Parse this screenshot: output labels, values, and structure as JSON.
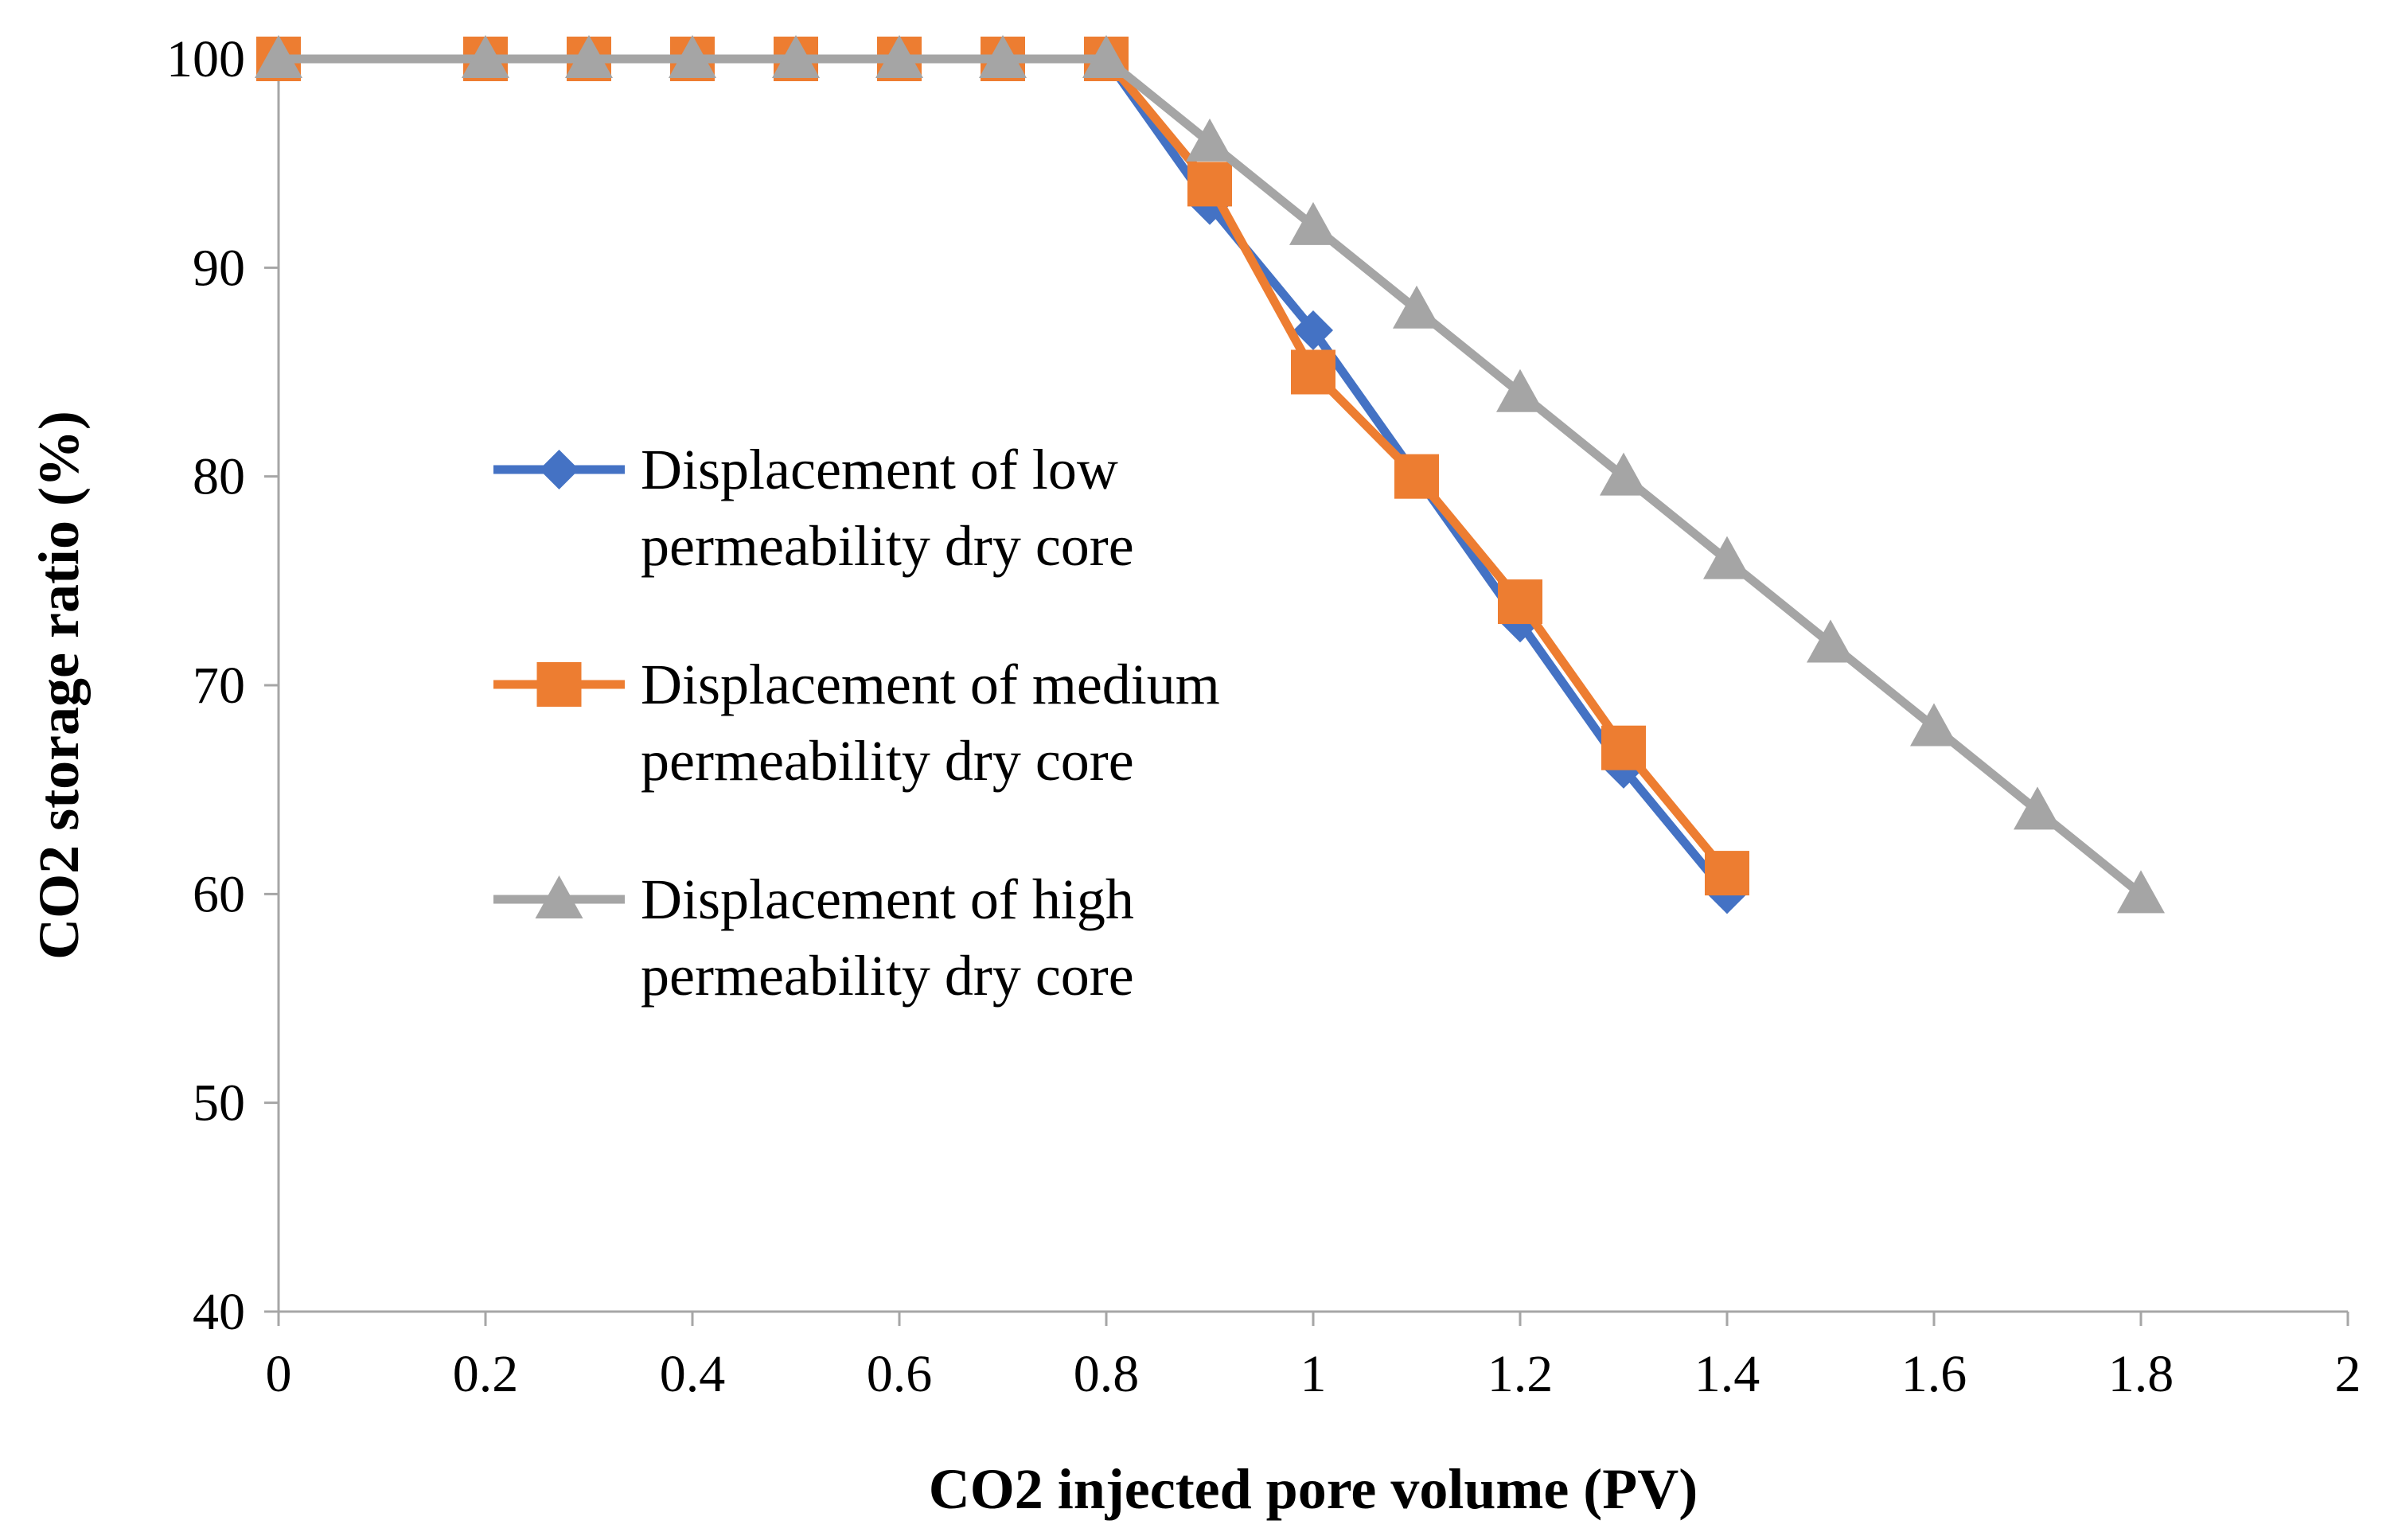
{
  "chart_data": {
    "type": "line",
    "xlabel": "CO2 injected pore volume (PV)",
    "ylabel": "CO2 storage ratio (%)",
    "xlim": [
      0,
      2
    ],
    "ylim": [
      40,
      100
    ],
    "x_ticks": [
      0,
      0.2,
      0.4,
      0.6,
      0.8,
      1,
      1.2,
      1.4,
      1.6,
      1.8,
      2
    ],
    "x_tick_labels": [
      "0",
      "0.2",
      "0.4",
      "0.6",
      "0.8",
      "1",
      "1.2",
      "1.4",
      "1.6",
      "1.8",
      "2"
    ],
    "y_ticks": [
      40,
      50,
      60,
      70,
      80,
      90,
      100
    ],
    "y_tick_labels": [
      "40",
      "50",
      "60",
      "70",
      "80",
      "90",
      "100"
    ],
    "grid": false,
    "legend_position": "center-left",
    "series": [
      {
        "name": "Displacement of low permeability dry core",
        "legend_lines": [
          "Displacement of low",
          "permeability dry core"
        ],
        "color": "#4472C4",
        "marker": "diamond",
        "x": [
          0,
          0.2,
          0.3,
          0.4,
          0.5,
          0.6,
          0.7,
          0.8,
          0.9,
          1.0,
          1.1,
          1.2,
          1.3,
          1.4
        ],
        "y": [
          100,
          100,
          100,
          100,
          100,
          100,
          100,
          100,
          93,
          87,
          80,
          73,
          66,
          60
        ]
      },
      {
        "name": "Displacement of medium permeability dry core",
        "legend_lines": [
          "Displacement of medium",
          "permeability dry core"
        ],
        "color": "#ED7D31",
        "marker": "square",
        "x": [
          0,
          0.2,
          0.3,
          0.4,
          0.5,
          0.6,
          0.7,
          0.8,
          0.9,
          1.0,
          1.1,
          1.2,
          1.3,
          1.4
        ],
        "y": [
          100,
          100,
          100,
          100,
          100,
          100,
          100,
          100,
          94,
          85,
          80,
          74,
          67,
          61
        ]
      },
      {
        "name": "Displacement of high permeability dry core",
        "legend_lines": [
          "Displacement of high",
          "permeability dry core"
        ],
        "color": "#A5A5A5",
        "marker": "triangle",
        "x": [
          0,
          0.2,
          0.3,
          0.4,
          0.5,
          0.6,
          0.7,
          0.8,
          0.9,
          1.0,
          1.1,
          1.2,
          1.3,
          1.4,
          1.5,
          1.6,
          1.7,
          1.8
        ],
        "y": [
          100,
          100,
          100,
          100,
          100,
          100,
          100,
          100,
          96,
          92,
          88,
          84,
          80,
          76,
          72,
          68,
          64,
          60
        ]
      }
    ]
  }
}
